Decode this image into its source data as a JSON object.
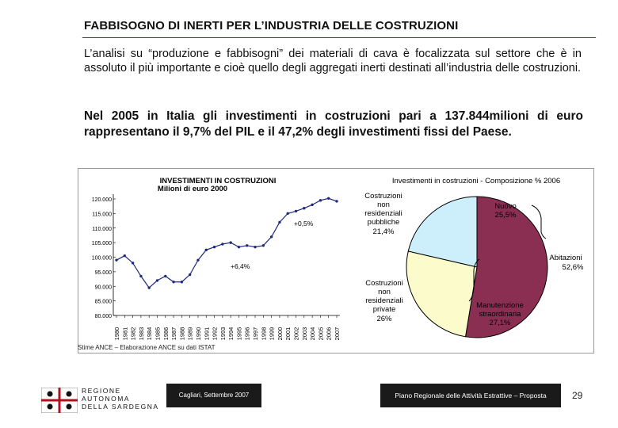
{
  "header": {
    "title": "FABBISOGNO DI INERTI PER L’INDUSTRIA DELLE COSTRUZIONI"
  },
  "intro_text": "L’analisi su “produzione e fabbisogni” dei materiali di cava è focalizzata sul settore che è in assoluto il più importante e cioè quello degli aggregati inerti destinati all’industria delle costruzioni.",
  "stat_text": "Nel 2005 in Italia gli investimenti in costruzioni pari a 137.844milioni di euro rappresentano il 9,7% del PIL e il 47,2% degli investimenti fissi del Paese.",
  "colors": {
    "accent_rule": "#c8102e",
    "line": "#1f2a7a",
    "pie_residential": "#8b2f52",
    "pie_public": "#cdeffc",
    "pie_private": "#fbfbcc",
    "pie_new": "#aaaadc",
    "pie_maintenance": "#f4f4f4"
  },
  "chart_data": [
    {
      "type": "line",
      "title": "INVESTIMENTI IN COSTRUZIONI",
      "subtitle": "Milioni di euro 2000",
      "x": [
        "1980",
        "1981",
        "1982",
        "1983",
        "1984",
        "1985",
        "1986",
        "1987",
        "1988",
        "1989",
        "1990",
        "1991",
        "1992",
        "1993",
        "1994",
        "1995",
        "1996",
        "1997",
        "1998",
        "1999",
        "2000",
        "2001",
        "2002",
        "2003",
        "2004",
        "2005",
        "2006",
        "2007"
      ],
      "series": [
        {
          "values": [
            99000,
            100500,
            98000,
            93500,
            89500,
            92000,
            93500,
            91500,
            91500,
            94000,
            99000,
            102500,
            103500,
            104500,
            105000,
            103500,
            104000,
            103500,
            104000,
            107000,
            112000,
            115000,
            115800,
            116800,
            118000,
            119500,
            120200,
            119200
          ]
        }
      ],
      "ylim": [
        80000,
        120000
      ],
      "yticks": [
        "120.000",
        "115.000",
        "110.000",
        "105.000",
        "100.000",
        "95.000",
        "90.000",
        "85.000",
        "80.000"
      ],
      "annotations": [
        "+0,5%",
        "+6,4%"
      ],
      "grid": false
    },
    {
      "type": "pie",
      "title": "Investimenti in costruzioni - Composizione % 2006",
      "slices": [
        {
          "label": "Abitazioni",
          "value": 52.6,
          "value_label": "52,6%"
        },
        {
          "label": "Costruzioni non residenziali private",
          "value": 26.0,
          "value_label": "26%"
        },
        {
          "label": "Costruzioni non residenziali pubbliche",
          "value": 21.4,
          "value_label": "21,4%"
        }
      ],
      "groups": [
        {
          "label": "Nuovo",
          "value_label": "25,5%"
        },
        {
          "label": "Manutenzione straordinaria",
          "value_label": "27,1%"
        }
      ]
    }
  ],
  "source": "Stime ANCE – Elaborazione ANCE su dati ISTAT",
  "footer": {
    "region_line1": "REGIONE",
    "region_line2": "AUTONOMA",
    "region_line3": "DELLA SARDEGNA",
    "date": "Cagliari, Settembre 2007",
    "plan": "Piano Regionale delle Attività Estrattive – Proposta",
    "page_number": "29"
  }
}
